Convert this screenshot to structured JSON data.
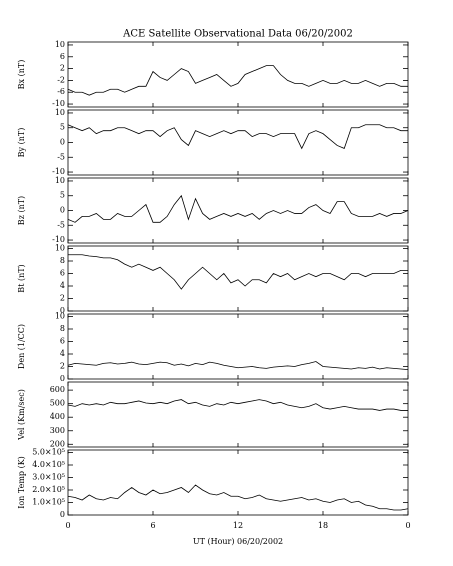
{
  "chart_data": [
    {
      "type": "line",
      "title": "ACE Satellite Observational Data   06/20/2002",
      "ylabel": "Bx (nT)",
      "x": [
        0,
        0.5,
        1,
        1.5,
        2,
        2.5,
        3,
        3.5,
        4,
        4.5,
        5,
        5.5,
        6,
        6.5,
        7,
        7.5,
        8,
        8.5,
        9,
        9.5,
        10,
        10.5,
        11,
        11.5,
        12,
        12.5,
        13,
        13.5,
        14,
        14.5,
        15,
        15.5,
        16,
        16.5,
        17,
        17.5,
        18,
        18.5,
        19,
        19.5,
        20,
        20.5,
        21,
        21.5,
        22,
        22.5,
        23,
        23.5,
        24
      ],
      "values": [
        -5,
        -6,
        -6,
        -7,
        -6,
        -6,
        -5,
        -5,
        -6,
        -5,
        -4,
        -4,
        1,
        -1,
        -2,
        0,
        2,
        1,
        -3,
        -2,
        -1,
        0,
        -2,
        -4,
        -3,
        0,
        1,
        2,
        3,
        3,
        0,
        -2,
        -3,
        -3,
        -4,
        -3,
        -2,
        -3,
        -3,
        -2,
        -3,
        -3,
        -2,
        -3,
        -4,
        -3,
        -3,
        -4,
        -4
      ],
      "ylim": [
        -11,
        11
      ],
      "yticks": [
        -10,
        -6,
        -2,
        2,
        6,
        10
      ],
      "color": "#000000"
    },
    {
      "type": "line",
      "ylabel": "By (nT)",
      "x": [
        0,
        0.5,
        1,
        1.5,
        2,
        2.5,
        3,
        3.5,
        4,
        4.5,
        5,
        5.5,
        6,
        6.5,
        7,
        7.5,
        8,
        8.5,
        9,
        9.5,
        10,
        10.5,
        11,
        11.5,
        12,
        12.5,
        13,
        13.5,
        14,
        14.5,
        15,
        15.5,
        16,
        16.5,
        17,
        17.5,
        18,
        18.5,
        19,
        19.5,
        20,
        20.5,
        21,
        21.5,
        22,
        22.5,
        23,
        23.5,
        24
      ],
      "values": [
        6,
        5,
        4,
        5,
        3,
        4,
        4,
        5,
        5,
        4,
        3,
        4,
        4,
        2,
        4,
        5,
        1,
        -1,
        4,
        3,
        2,
        3,
        4,
        3,
        4,
        4,
        2,
        3,
        3,
        2,
        3,
        3,
        3,
        -2,
        3,
        4,
        3,
        1,
        -1,
        -2,
        5,
        5,
        6,
        6,
        6,
        5,
        5,
        4,
        4
      ],
      "ylim": [
        -11,
        11
      ],
      "yticks": [
        -10,
        -5,
        0,
        5,
        10
      ],
      "color": "#000000"
    },
    {
      "type": "line",
      "ylabel": "Bz (nT)",
      "x": [
        0,
        0.5,
        1,
        1.5,
        2,
        2.5,
        3,
        3.5,
        4,
        4.5,
        5,
        5.5,
        6,
        6.5,
        7,
        7.5,
        8,
        8.5,
        9,
        9.5,
        10,
        10.5,
        11,
        11.5,
        12,
        12.5,
        13,
        13.5,
        14,
        14.5,
        15,
        15.5,
        16,
        16.5,
        17,
        17.5,
        18,
        18.5,
        19,
        19.5,
        20,
        20.5,
        21,
        21.5,
        22,
        22.5,
        23,
        23.5,
        24
      ],
      "values": [
        -3,
        -4,
        -2,
        -2,
        -1,
        -3,
        -3,
        -1,
        -2,
        -2,
        0,
        2,
        -4,
        -4,
        -2,
        2,
        5,
        -3,
        4,
        -1,
        -3,
        -2,
        -1,
        -2,
        -1,
        -2,
        -1,
        -3,
        -1,
        0,
        -1,
        0,
        -1,
        -1,
        1,
        2,
        0,
        -1,
        3,
        3,
        -1,
        -2,
        -2,
        -2,
        -1,
        -2,
        -1,
        -1,
        0
      ],
      "ylim": [
        -11,
        11
      ],
      "yticks": [
        -10,
        -5,
        0,
        5,
        10
      ],
      "color": "#000000"
    },
    {
      "type": "line",
      "ylabel": "Bt (nT)",
      "x": [
        0,
        0.5,
        1,
        1.5,
        2,
        2.5,
        3,
        3.5,
        4,
        4.5,
        5,
        5.5,
        6,
        6.5,
        7,
        7.5,
        8,
        8.5,
        9,
        9.5,
        10,
        10.5,
        11,
        11.5,
        12,
        12.5,
        13,
        13.5,
        14,
        14.5,
        15,
        15.5,
        16,
        16.5,
        17,
        17.5,
        18,
        18.5,
        19,
        19.5,
        20,
        20.5,
        21,
        21.5,
        22,
        22.5,
        23,
        23.5,
        24
      ],
      "values": [
        9,
        9,
        9,
        8.8,
        8.7,
        8.5,
        8.5,
        8.2,
        7.5,
        7,
        7.5,
        7,
        6.5,
        7,
        6,
        5,
        3.5,
        5,
        6,
        7,
        6,
        5,
        6,
        4.5,
        5,
        4,
        5,
        5,
        4.5,
        6,
        5.5,
        6,
        5,
        5.5,
        6,
        5.5,
        6,
        6,
        5.5,
        5,
        6,
        6,
        5.5,
        6,
        6,
        6,
        6,
        6.5,
        6.5
      ],
      "ylim": [
        0,
        10.4
      ],
      "yticks": [
        0,
        2,
        4,
        6,
        8,
        10
      ],
      "color": "#000000"
    },
    {
      "type": "line",
      "ylabel": "Den (1/CC)",
      "x": [
        0,
        0.5,
        1,
        1.5,
        2,
        2.5,
        3,
        3.5,
        4,
        4.5,
        5,
        5.5,
        6,
        6.5,
        7,
        7.5,
        8,
        8.5,
        9,
        9.5,
        10,
        10.5,
        11,
        11.5,
        12,
        12.5,
        13,
        13.5,
        14,
        14.5,
        15,
        15.5,
        16,
        16.5,
        17,
        17.5,
        18,
        18.5,
        19,
        19.5,
        20,
        20.5,
        21,
        21.5,
        22,
        22.5,
        23,
        23.5,
        24
      ],
      "values": [
        2.2,
        2.5,
        2.4,
        2.3,
        2.2,
        2.5,
        2.6,
        2.4,
        2.5,
        2.7,
        2.4,
        2.3,
        2.5,
        2.7,
        2.6,
        2.2,
        2.4,
        2.1,
        2.5,
        2.3,
        2.7,
        2.5,
        2.2,
        2.0,
        1.8,
        1.9,
        2.0,
        1.8,
        1.7,
        1.9,
        2.0,
        2.1,
        2.0,
        2.3,
        2.5,
        2.8,
        2.0,
        1.9,
        1.8,
        1.7,
        1.6,
        1.8,
        1.7,
        1.9,
        1.6,
        1.8,
        1.7,
        1.6,
        1.5
      ],
      "ylim": [
        0,
        10.4
      ],
      "yticks": [
        0,
        2,
        4,
        6,
        8,
        10
      ],
      "color": "#000000"
    },
    {
      "type": "line",
      "ylabel": "Vel (Km/sec)",
      "x": [
        0,
        0.5,
        1,
        1.5,
        2,
        2.5,
        3,
        3.5,
        4,
        4.5,
        5,
        5.5,
        6,
        6.5,
        7,
        7.5,
        8,
        8.5,
        9,
        9.5,
        10,
        10.5,
        11,
        11.5,
        12,
        12.5,
        13,
        13.5,
        14,
        14.5,
        15,
        15.5,
        16,
        16.5,
        17,
        17.5,
        18,
        18.5,
        19,
        19.5,
        20,
        20.5,
        21,
        21.5,
        22,
        22.5,
        23,
        23.5,
        24
      ],
      "values": [
        490,
        480,
        500,
        490,
        500,
        490,
        510,
        500,
        500,
        510,
        520,
        505,
        500,
        510,
        500,
        520,
        530,
        500,
        510,
        490,
        480,
        500,
        490,
        510,
        500,
        510,
        520,
        530,
        520,
        500,
        510,
        490,
        480,
        470,
        480,
        500,
        470,
        460,
        470,
        480,
        470,
        460,
        460,
        460,
        450,
        460,
        460,
        450,
        450
      ],
      "ylim": [
        180,
        660
      ],
      "yticks": [
        200,
        300,
        400,
        500,
        600
      ],
      "color": "#000000"
    },
    {
      "type": "line",
      "ylabel": "Ion Temp (K)",
      "xlabel": "UT (Hour)   06/20/2002",
      "x": [
        0,
        0.5,
        1,
        1.5,
        2,
        2.5,
        3,
        3.5,
        4,
        4.5,
        5,
        5.5,
        6,
        6.5,
        7,
        7.5,
        8,
        8.5,
        9,
        9.5,
        10,
        10.5,
        11,
        11.5,
        12,
        12.5,
        13,
        13.5,
        14,
        14.5,
        15,
        15.5,
        16,
        16.5,
        17,
        17.5,
        18,
        18.5,
        19,
        19.5,
        20,
        20.5,
        21,
        21.5,
        22,
        22.5,
        23,
        23.5,
        24
      ],
      "values": [
        150000,
        140000,
        120000,
        160000,
        130000,
        120000,
        140000,
        130000,
        180000,
        220000,
        180000,
        160000,
        200000,
        170000,
        180000,
        200000,
        220000,
        180000,
        240000,
        200000,
        170000,
        160000,
        180000,
        150000,
        150000,
        130000,
        140000,
        160000,
        130000,
        120000,
        110000,
        120000,
        130000,
        140000,
        120000,
        130000,
        110000,
        100000,
        120000,
        130000,
        100000,
        110000,
        80000,
        70000,
        50000,
        50000,
        40000,
        40000,
        50000
      ],
      "ylim": [
        0,
        520000
      ],
      "yticks": [
        0,
        {
          "value": 100000,
          "label": "1.0×10⁵"
        },
        {
          "value": 200000,
          "label": "2.0×10⁵"
        },
        {
          "value": 300000,
          "label": "3.0×10⁵"
        },
        {
          "value": 400000,
          "label": "4.0×10⁵"
        },
        {
          "value": 500000,
          "label": "5.0×10⁵"
        }
      ],
      "xlim": [
        0,
        24
      ],
      "xticks": [
        0,
        6,
        12,
        18,
        {
          "value": 24,
          "label": "0"
        }
      ],
      "color": "#000000"
    }
  ]
}
